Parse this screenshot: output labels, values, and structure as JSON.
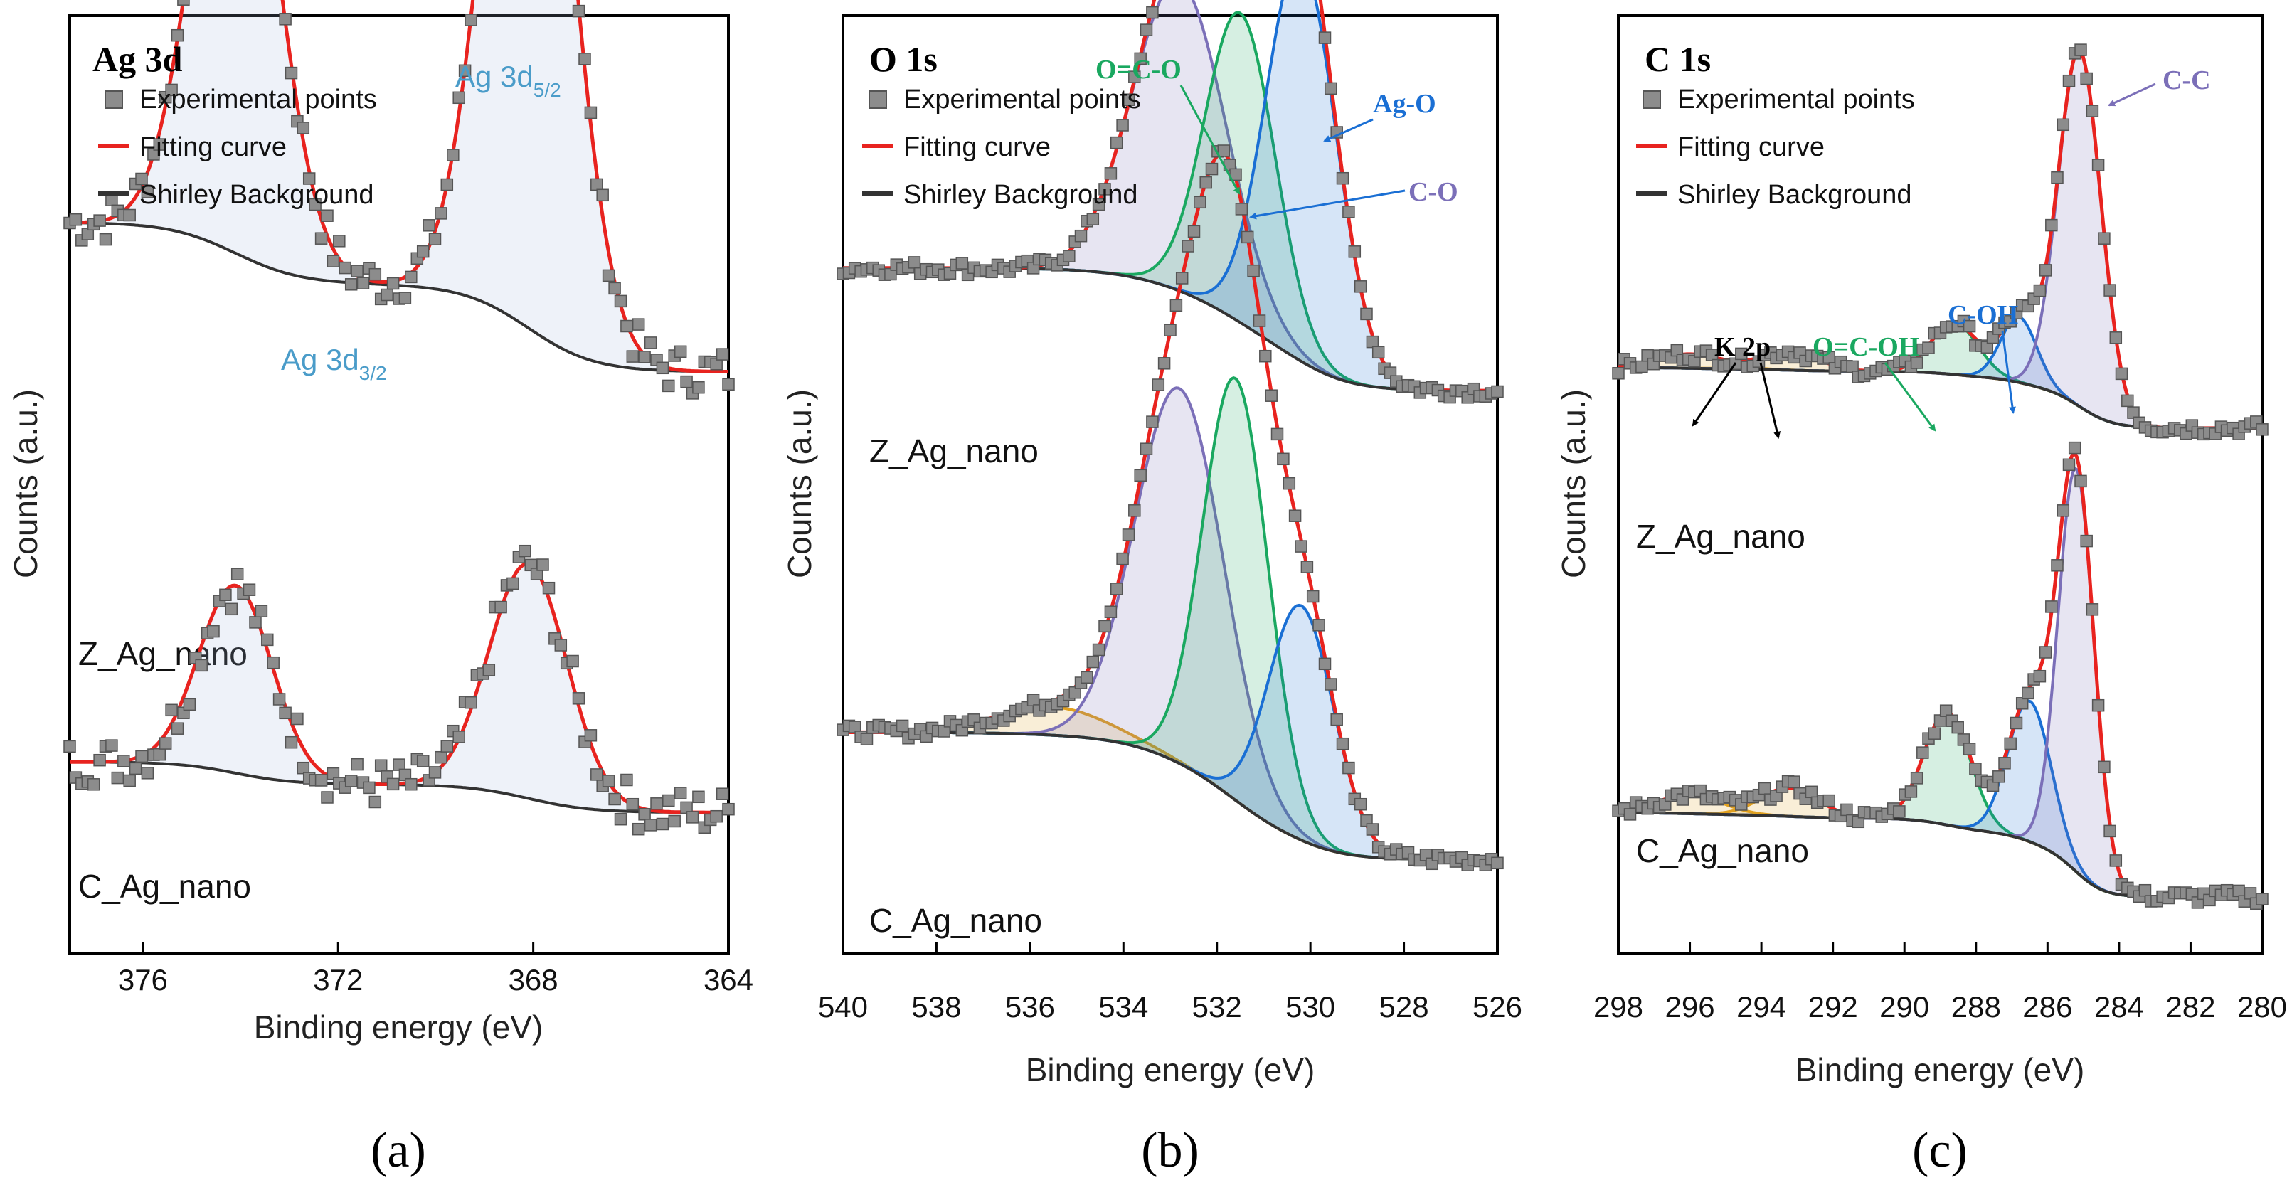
{
  "chart_data": [
    {
      "type": "line",
      "panel_caption": "(a)",
      "title": "Ag 3d",
      "xlabel": "Binding energy (eV)",
      "ylabel": "Counts (a.u.)",
      "xlim": [
        377.5,
        364
      ],
      "xticks": [
        376,
        372,
        368,
        364
      ],
      "legend": [
        "Experimental points",
        "Fitting curve",
        "Shirley Background"
      ],
      "samples": [
        {
          "name": "Z_Ag_nano",
          "baseline": 0.62,
          "peaks": [
            {
              "center": 374.1,
              "height": 0.55,
              "width": 0.85
            },
            {
              "center": 368.1,
              "height": 0.78,
              "width": 0.85
            }
          ]
        },
        {
          "name": "C_Ag_nano",
          "baseline": 0.15,
          "peaks": [
            {
              "center": 374.1,
              "height": 0.2,
              "width": 0.75
            },
            {
              "center": 368.1,
              "height": 0.25,
              "width": 0.8
            }
          ]
        }
      ],
      "annotations": [
        {
          "text": "Ag 3d",
          "sub": "3/2",
          "color": "#4a9cc9"
        },
        {
          "text": "Ag 3d",
          "sub": "5/2",
          "color": "#4a9cc9"
        }
      ]
    },
    {
      "type": "line",
      "panel_caption": "(b)",
      "title": "O 1s",
      "xlabel": "Binding energy (eV)",
      "ylabel": "Counts (a.u.)",
      "xlim": [
        540,
        526
      ],
      "xticks": [
        540,
        538,
        536,
        534,
        532,
        530,
        528,
        526
      ],
      "legend": [
        "Experimental points",
        "Fitting curve",
        "Shirley Background"
      ],
      "samples": [
        {
          "name": "Z_Ag_nano",
          "baseline": 0.6,
          "peaks": [
            {
              "center": 532.8,
              "height": 0.33,
              "width": 1.0,
              "label": "C-O",
              "color": "#7b6fb8"
            },
            {
              "center": 531.5,
              "height": 0.33,
              "width": 0.75,
              "label": "O=C-O",
              "color": "#1aa860"
            },
            {
              "center": 530.2,
              "height": 0.43,
              "width": 0.75,
              "label": "Ag-O",
              "color": "#1a6fd4"
            }
          ]
        },
        {
          "name": "C_Ag_nano",
          "baseline": 0.1,
          "peaks": [
            {
              "center": 535.5,
              "height": 0.03,
              "width": 1.2,
              "color": "#e0a020"
            },
            {
              "center": 532.8,
              "height": 0.4,
              "width": 0.95,
              "color": "#7b6fb8"
            },
            {
              "center": 531.6,
              "height": 0.45,
              "width": 0.7,
              "color": "#1aa860"
            },
            {
              "center": 530.2,
              "height": 0.25,
              "width": 0.7,
              "color": "#1a6fd4"
            }
          ]
        }
      ],
      "annotations": [
        {
          "text": "O=C-O",
          "color": "#1aa860"
        },
        {
          "text": "Ag-O",
          "color": "#1a6fd4"
        },
        {
          "text": "C-O",
          "color": "#7b6fb8"
        }
      ]
    },
    {
      "type": "line",
      "panel_caption": "(c)",
      "title": "C 1s",
      "xlabel": "Binding energy (eV)",
      "ylabel": "Counts (a.u.)",
      "xlim": [
        298,
        280
      ],
      "xticks": [
        298,
        296,
        294,
        292,
        290,
        288,
        286,
        284,
        282,
        280
      ],
      "legend": [
        "Experimental points",
        "Fitting curve",
        "Shirley Background"
      ],
      "samples": [
        {
          "name": "Z_Ag_nano",
          "baseline": 0.56,
          "peaks": [
            {
              "center": 296.0,
              "height": 0.015,
              "width": 0.9,
              "color": "#e0a020"
            },
            {
              "center": 293.2,
              "height": 0.02,
              "width": 0.8,
              "color": "#e0a020"
            },
            {
              "center": 288.6,
              "height": 0.055,
              "width": 0.65,
              "label": "O=C-OH",
              "color": "#1aa860"
            },
            {
              "center": 286.8,
              "height": 0.07,
              "width": 0.5,
              "label": "C-OH",
              "color": "#1a6fd4"
            },
            {
              "center": 285.1,
              "height": 0.38,
              "width": 0.6,
              "label": "C-C",
              "color": "#7b6fb8"
            }
          ]
        },
        {
          "name": "C_Ag_nano",
          "baseline": 0.06,
          "peaks": [
            {
              "center": 296.0,
              "height": 0.02,
              "width": 0.9,
              "color": "#e0a020"
            },
            {
              "center": 293.2,
              "height": 0.03,
              "width": 0.8,
              "color": "#e0a020"
            },
            {
              "center": 288.8,
              "height": 0.12,
              "width": 0.65,
              "color": "#1aa860"
            },
            {
              "center": 286.5,
              "height": 0.15,
              "width": 0.6,
              "color": "#1a6fd4"
            },
            {
              "center": 285.2,
              "height": 0.43,
              "width": 0.5,
              "color": "#7b6fb8"
            }
          ]
        }
      ],
      "annotations": [
        {
          "text": "K 2p",
          "color": "#000000"
        },
        {
          "text": "O=C-OH",
          "color": "#1aa860"
        },
        {
          "text": "C-OH",
          "color": "#1a6fd4"
        },
        {
          "text": "C-C",
          "color": "#7b6fb8"
        }
      ]
    }
  ],
  "colors": {
    "fit": "#e8231f",
    "points": "#8c8c8c",
    "background": "#333333",
    "fill": "#9fb9df"
  }
}
